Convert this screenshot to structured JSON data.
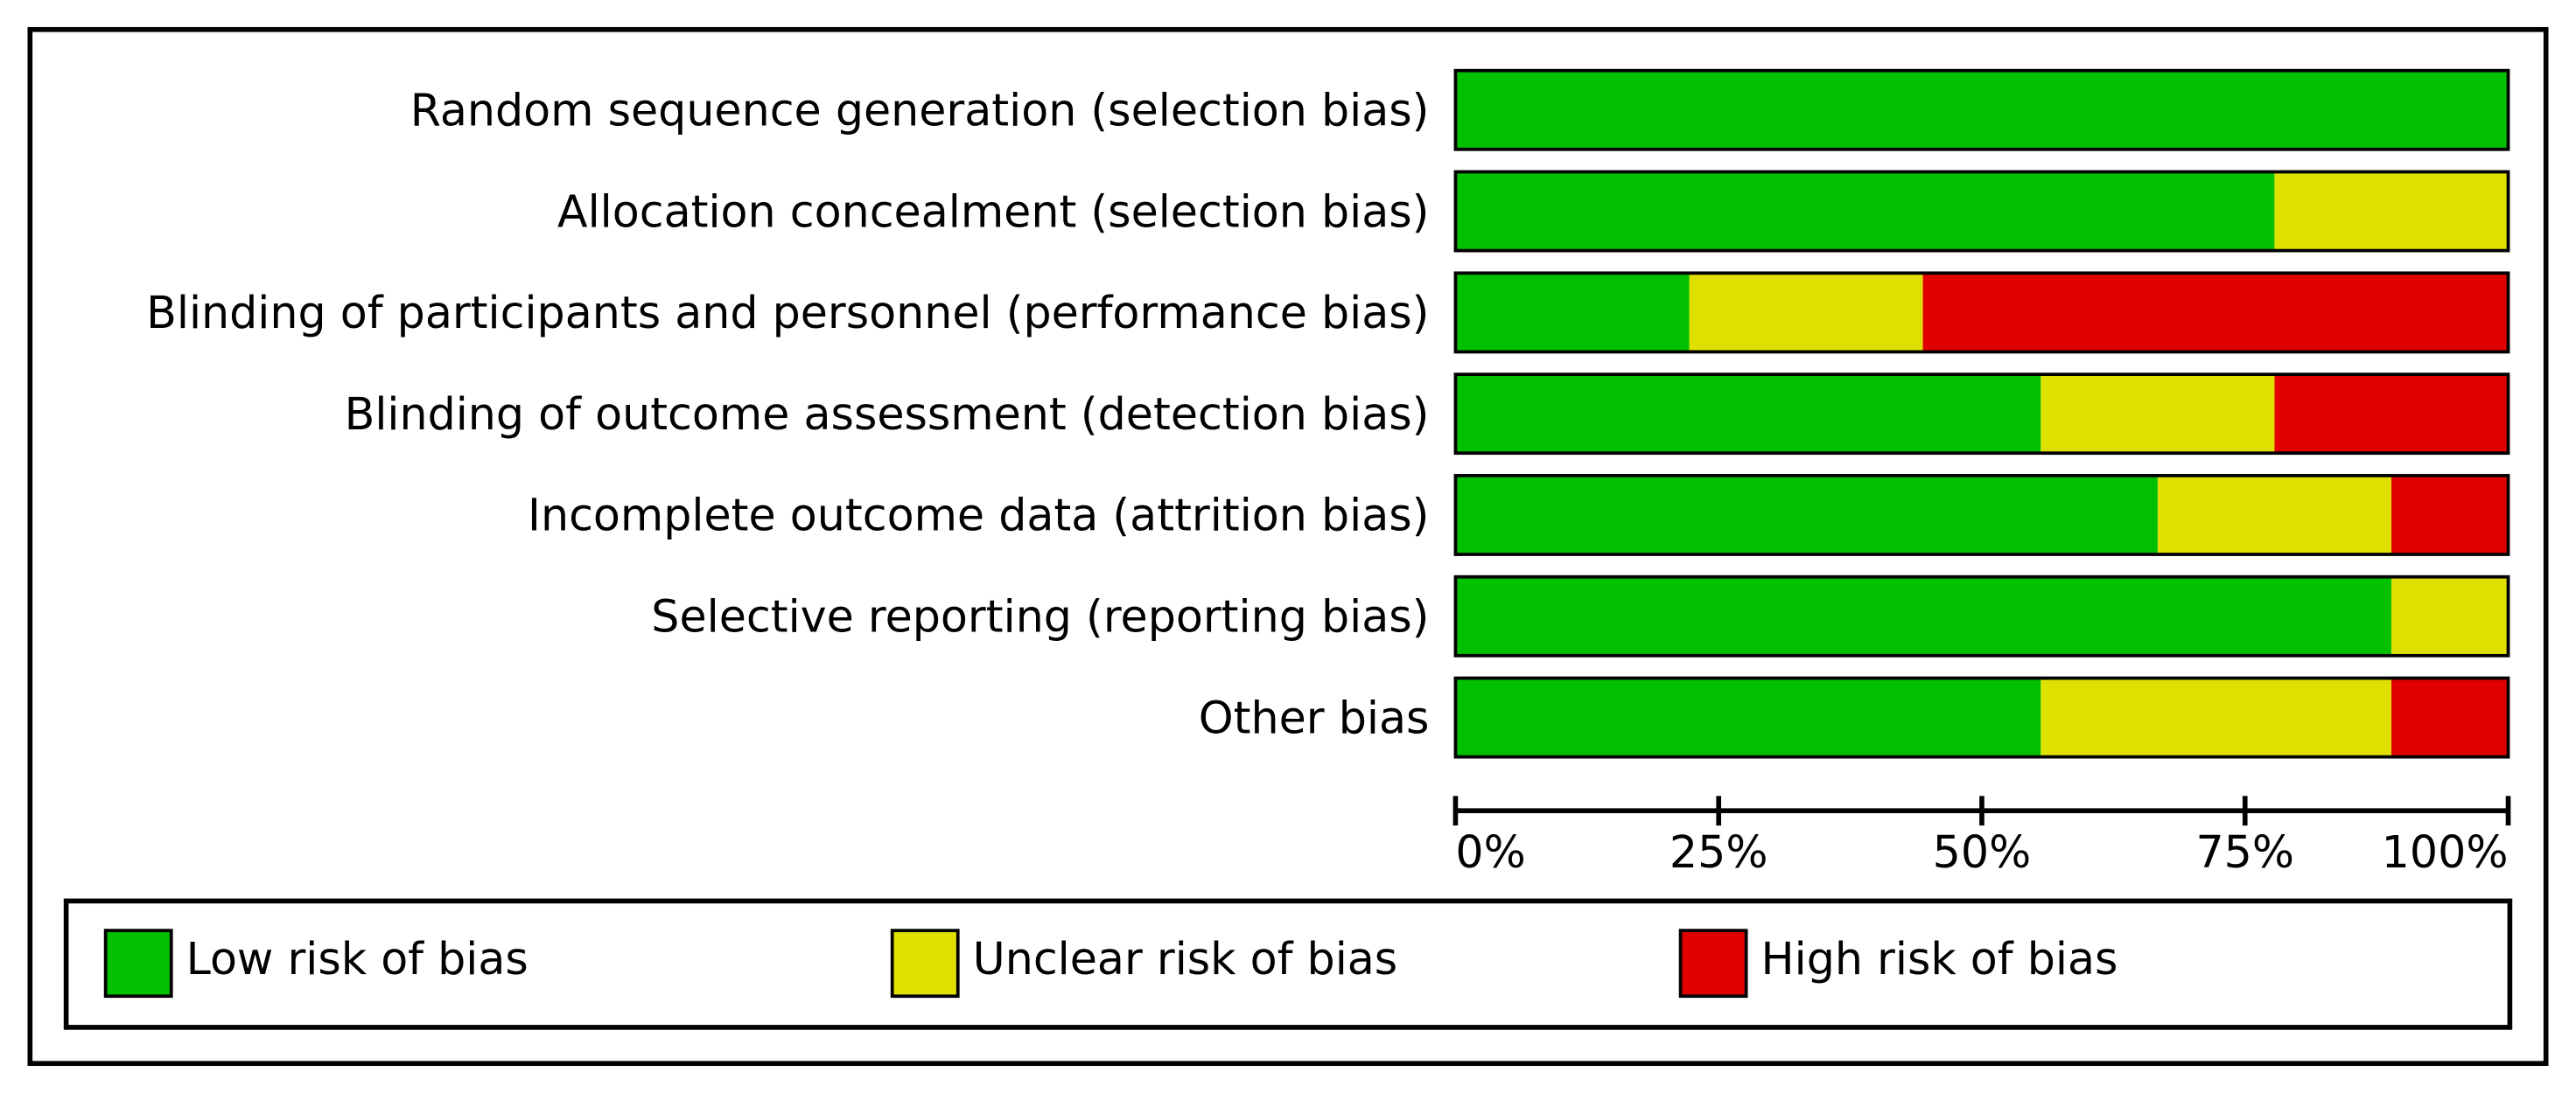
{
  "chart_data": {
    "type": "stacked-barh",
    "categories": [
      "Random sequence generation (selection bias)",
      "Allocation concealment (selection bias)",
      "Blinding of participants and personnel (performance bias)",
      "Blinding of outcome assessment (detection bias)",
      "Incomplete outcome data (attrition bias)",
      "Selective reporting (reporting bias)",
      "Other bias"
    ],
    "series": [
      {
        "name": "Low risk of bias",
        "color": "#00c000",
        "values": [
          100,
          77.8,
          22.2,
          55.6,
          66.7,
          88.9,
          55.6
        ]
      },
      {
        "name": "Unclear risk of bias",
        "color": "#e0e000",
        "values": [
          0,
          22.2,
          22.2,
          22.2,
          22.2,
          11.1,
          33.3
        ]
      },
      {
        "name": "High risk of bias",
        "color": "#e00000",
        "values": [
          0,
          0,
          55.6,
          22.2,
          11.1,
          0,
          11.1
        ]
      }
    ],
    "xlim": [
      0,
      100
    ],
    "xticks": [
      {
        "value": 0,
        "label": "0%"
      },
      {
        "value": 25,
        "label": "25%"
      },
      {
        "value": 50,
        "label": "50%"
      },
      {
        "value": 75,
        "label": "75%"
      },
      {
        "value": 100,
        "label": "100%"
      }
    ]
  }
}
